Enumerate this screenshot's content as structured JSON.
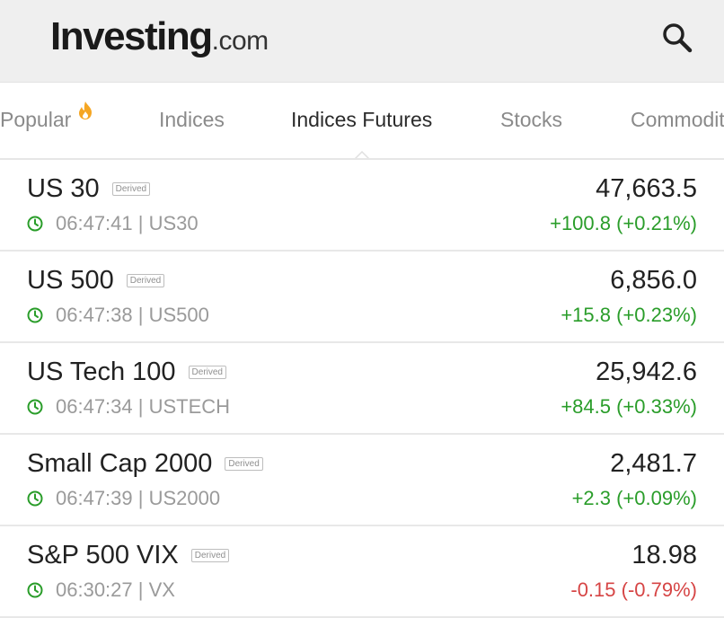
{
  "header": {
    "logo_main": "Investing",
    "logo_suffix": ".com",
    "search_icon": "search-icon"
  },
  "tabs": [
    {
      "label": "Popular",
      "icon": "fire-icon",
      "active": false
    },
    {
      "label": "Indices",
      "active": false
    },
    {
      "label": "Indices Futures",
      "active": true
    },
    {
      "label": "Stocks",
      "active": false
    },
    {
      "label": "Commodit",
      "active": false
    }
  ],
  "colors": {
    "header_bg": "#efefef",
    "positive": "#2a9d2a",
    "negative": "#d64545",
    "fire": "#f5a623"
  },
  "instruments": [
    {
      "name": "US 30",
      "badge": "Derived",
      "time": "06:47:41",
      "symbol": "US30",
      "meta": "06:47:41 | US30",
      "price": "47,663.5",
      "change": "+100.8 (+0.21%)",
      "direction": "up"
    },
    {
      "name": "US 500",
      "badge": "Derived",
      "time": "06:47:38",
      "symbol": "US500",
      "meta": "06:47:38 | US500",
      "price": "6,856.0",
      "change": "+15.8 (+0.23%)",
      "direction": "up"
    },
    {
      "name": "US Tech 100",
      "badge": "Derived",
      "time": "06:47:34",
      "symbol": "USTECH",
      "meta": "06:47:34 | USTECH",
      "price": "25,942.6",
      "change": "+84.5 (+0.33%)",
      "direction": "up"
    },
    {
      "name": "Small Cap 2000",
      "badge": "Derived",
      "time": "06:47:39",
      "symbol": "US2000",
      "meta": "06:47:39 | US2000",
      "price": "2,481.7",
      "change": "+2.3 (+0.09%)",
      "direction": "up"
    },
    {
      "name": "S&P 500 VIX",
      "badge": "Derived",
      "time": "06:30:27",
      "symbol": "VX",
      "meta": "06:30:27 | VX",
      "price": "18.98",
      "change": "-0.15 (-0.79%)",
      "direction": "down"
    }
  ]
}
